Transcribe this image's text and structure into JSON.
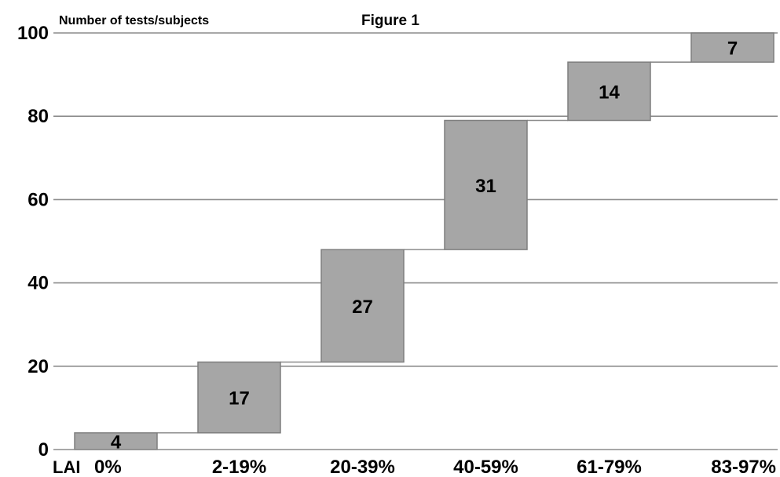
{
  "chart_data": {
    "type": "waterfall",
    "title": "Figure 1",
    "ylabel": "Number of tests/subjects",
    "xlabel": "LAI",
    "categories": [
      "0%",
      "2-19%",
      "20-39%",
      "40-59%",
      "61-79%",
      "83-97%"
    ],
    "values": [
      4,
      17,
      27,
      31,
      14,
      7
    ],
    "cumulative_top": [
      4,
      21,
      48,
      79,
      93,
      100
    ],
    "data_labels": [
      "4",
      "17",
      "27",
      "31",
      "14",
      "7"
    ],
    "ylim": [
      0,
      100
    ],
    "yticks": [
      0,
      20,
      40,
      60,
      80,
      100
    ],
    "ytick_labels": [
      "0",
      "20",
      "40",
      "60",
      "80",
      "100"
    ],
    "grid": true,
    "legend": "none",
    "colors": {
      "bar_fill": "#a6a6a6",
      "bar_stroke": "#7f7f7f",
      "grid": "#8c8c8c",
      "text": "#000000",
      "connector": "#8c8c8c"
    }
  }
}
